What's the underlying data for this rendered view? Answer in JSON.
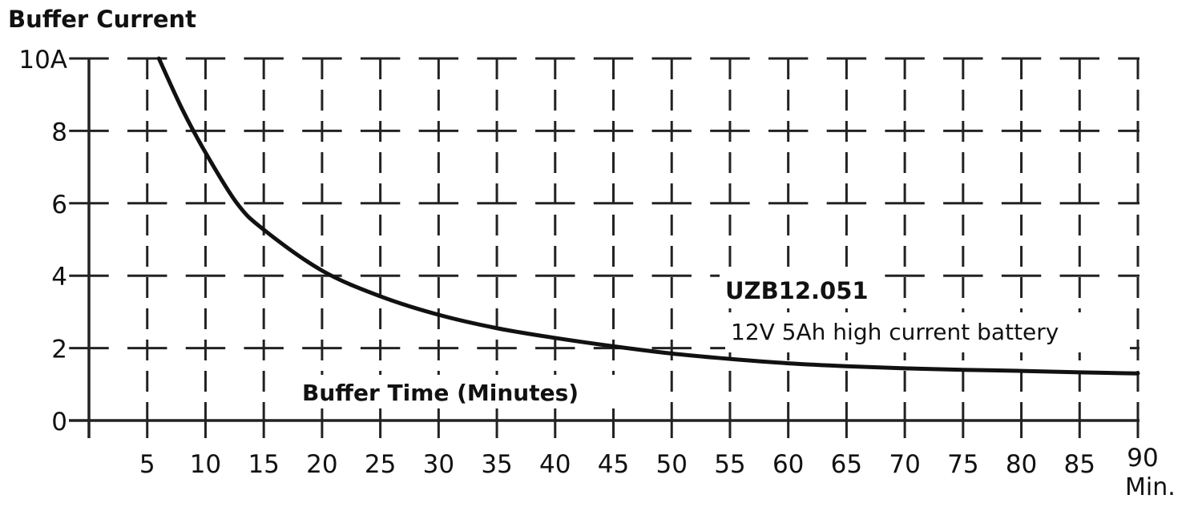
{
  "chart_data": {
    "type": "line",
    "title": "",
    "ylabel": "Buffer Current",
    "xlabel": "Buffer Time (Minutes)",
    "x_unit_label": "Min.",
    "xlim": [
      0,
      90
    ],
    "ylim": [
      0,
      10
    ],
    "x_ticks": [
      5,
      10,
      15,
      20,
      25,
      30,
      35,
      40,
      45,
      50,
      55,
      60,
      65,
      70,
      75,
      80,
      85,
      90
    ],
    "x_tick_labels": [
      "5",
      "10",
      "15",
      "20",
      "25",
      "30",
      "35",
      "40",
      "45",
      "50",
      "55",
      "60",
      "65",
      "70",
      "75",
      "80",
      "85",
      "90"
    ],
    "y_ticks": [
      0,
      2,
      4,
      6,
      8,
      10
    ],
    "y_tick_labels": [
      "0",
      "2",
      "4",
      "6",
      "8",
      "10A"
    ],
    "grid": true,
    "grid_style": "dashed",
    "annotations": {
      "model": "UZB12.051",
      "description": "12V 5Ah high current battery"
    },
    "series": [
      {
        "color": "#111111",
        "x": [
          6,
          8,
          10,
          12.7,
          15,
          20,
          25,
          30,
          35,
          40,
          45,
          50,
          55,
          60,
          65,
          70,
          75,
          80,
          85,
          90
        ],
        "y": [
          10,
          8.6,
          7.4,
          6,
          5.27,
          4.14,
          3.43,
          2.92,
          2.55,
          2.28,
          2.05,
          1.85,
          1.7,
          1.58,
          1.5,
          1.44,
          1.4,
          1.37,
          1.33,
          1.3
        ]
      }
    ]
  }
}
